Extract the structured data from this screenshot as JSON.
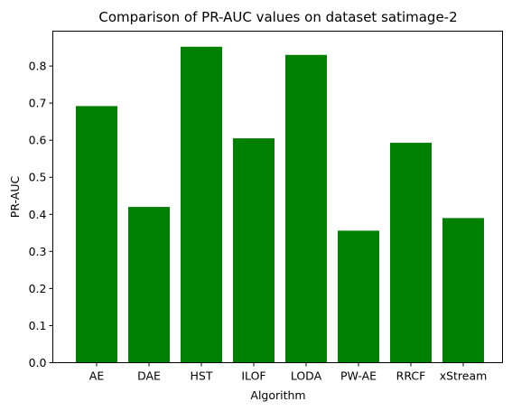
{
  "chart_data": {
    "type": "bar",
    "title": "Comparison of PR-AUC values on dataset satimage-2",
    "xlabel": "Algorithm",
    "ylabel": "PR-AUC",
    "categories": [
      "AE",
      "DAE",
      "HST",
      "ILOF",
      "LODA",
      "PW-AE",
      "RRCF",
      "xStream"
    ],
    "values": [
      0.692,
      0.42,
      0.852,
      0.605,
      0.83,
      0.356,
      0.593,
      0.39
    ],
    "ylim": [
      0,
      0.894
    ],
    "yticks": [
      0.0,
      0.1,
      0.2,
      0.3,
      0.4,
      0.5,
      0.6,
      0.7,
      0.8
    ],
    "bar_color": "#008000",
    "grid": false,
    "legend": "none"
  }
}
